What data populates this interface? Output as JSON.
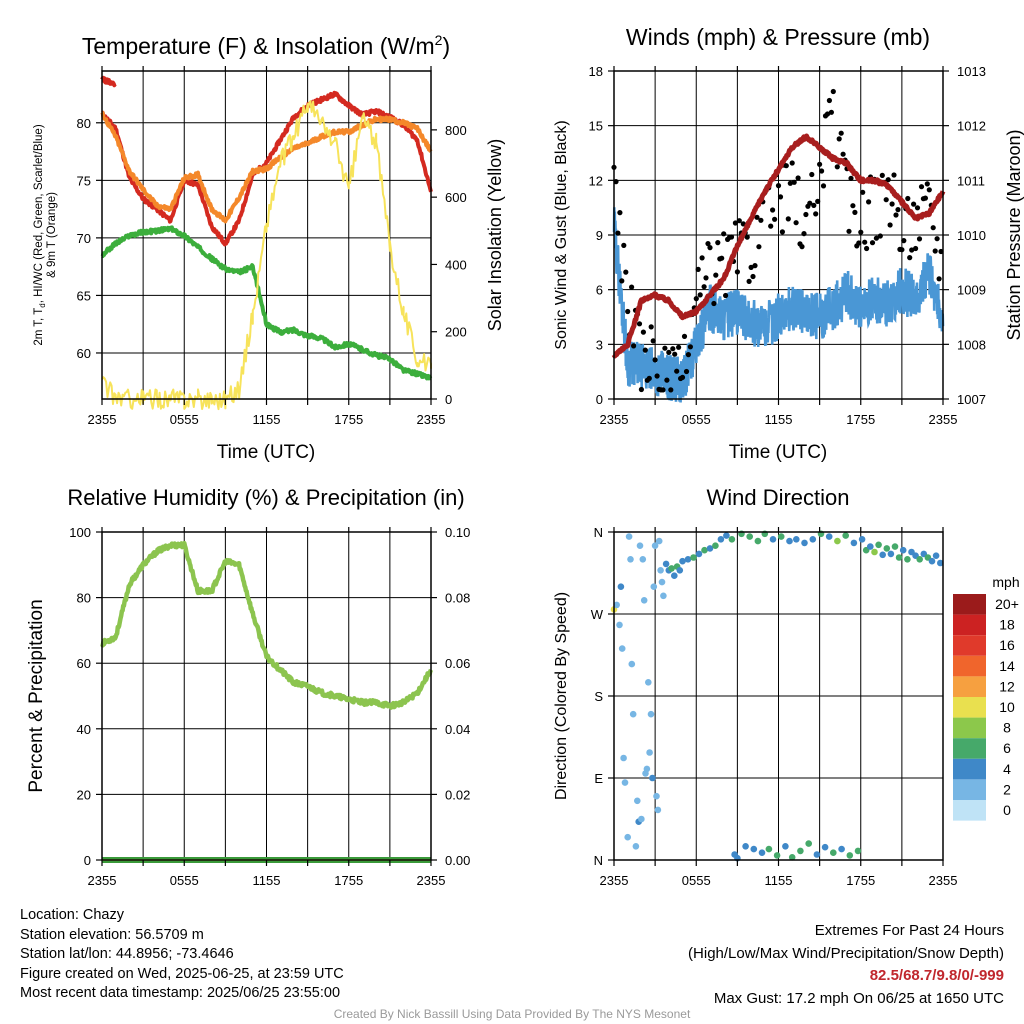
{
  "colors": {
    "red": "#d42a20",
    "orange": "#f4882a",
    "green": "#3cae3c",
    "yellow": "#f7e35b",
    "wind_blue": "#4a97d5",
    "gust_black": "#000000",
    "pressure_maroon": "#a81e1e",
    "rh_green": "#8cc44f",
    "precip_green": "#3a9a3a"
  },
  "titles": {
    "temperature": "Temperature (F) & Insolation (W/m",
    "temperature_sup": "2",
    "temperature_close": ")",
    "winds": "Winds (mph) & Pressure (mb)",
    "humidity": "Relative Humidity (%) & Precipitation (in)",
    "direction": "Wind Direction"
  },
  "axis_labels": {
    "time_utc": "Time (UTC)",
    "temp_left_line1": "2m T, T",
    "temp_left_sub": "d",
    "temp_left_line1_rest": ", HI/WC (Red, Green, Scarlet/Blue)",
    "temp_left_line2": "& 9m T (Orange)",
    "temp_right": "Solar Insolation (Yellow)",
    "wind_left": "Sonic Wind & Gust (Blue, Black)",
    "wind_right": "Station Pressure (Maroon)",
    "rh_left": "Percent & Precipitation",
    "dir_left": "Direction (Colored By Speed)"
  },
  "time_ticks": [
    "2355",
    "0555",
    "1155",
    "1755",
    "2355"
  ],
  "ticks": {
    "temp_left": [
      "60",
      "65",
      "70",
      "75",
      "80"
    ],
    "temp_right": [
      "0",
      "200",
      "400",
      "600",
      "800"
    ],
    "wind_left": [
      "0",
      "3",
      "6",
      "9",
      "12",
      "15",
      "18"
    ],
    "wind_right": [
      "1007",
      "1008",
      "1009",
      "1010",
      "1011",
      "1012",
      "1013"
    ],
    "rh_left": [
      "0",
      "20",
      "40",
      "60",
      "80",
      "100"
    ],
    "rh_right": [
      "0.00",
      "0.02",
      "0.04",
      "0.06",
      "0.08",
      "0.10"
    ],
    "dir_left": [
      "N",
      "E",
      "S",
      "W",
      "N"
    ]
  },
  "legend": {
    "title": "mph",
    "labels": [
      "20+",
      "18",
      "16",
      "14",
      "12",
      "10",
      "8",
      "6",
      "4",
      "2",
      "0"
    ],
    "colors": [
      "#9b1b1b",
      "#cc2222",
      "#e03a2b",
      "#f0652c",
      "#f6a040",
      "#e9e04f",
      "#8cc84b",
      "#46a96a",
      "#3f88c8",
      "#77b6e4",
      "#bfe3f6"
    ]
  },
  "info": {
    "location": "Location: Chazy",
    "elevation": "Station elevation: 56.5709 m",
    "latlon": "Station lat/lon: 44.8956; -73.4646",
    "created": "Figure created on Wed, 2025-06-25, at 23:59 UTC",
    "recent": "Most recent data timestamp: 2025/06/25 23:55:00"
  },
  "extremes": {
    "heading": "Extremes For Past 24 Hours",
    "subheading": "(High/Low/Max Wind/Precipitation/Snow Depth)",
    "values": "82.5/68.7/9.8/0/-999",
    "max_gust": "Max Gust: 17.2 mph On 06/25 at 1650 UTC"
  },
  "credit": "Created By Nick Bassill Using Data Provided By The NYS Mesonet",
  "chart_data": [
    {
      "type": "line",
      "title": "Temperature (F) & Insolation (W/m2)",
      "xlabel": "Time (UTC)",
      "ylabel": "2m T, Td, HI/WC (Red, Green, Scarlet/Blue) & 9m T (Orange)",
      "y2label": "Solar Insolation (Yellow)",
      "x_ticks": [
        "2355",
        "0555",
        "1155",
        "1755",
        "2355"
      ],
      "ylim": [
        56,
        84.5
      ],
      "y2lim": [
        0,
        975
      ],
      "grid": true,
      "x": [
        0,
        1,
        2,
        3,
        4,
        5,
        6,
        7,
        8,
        9,
        10,
        11,
        12,
        13,
        14,
        15,
        16,
        17,
        18,
        19,
        20,
        21,
        22,
        23,
        24
      ],
      "series": [
        {
          "name": "2m T (Red)",
          "axis": "left",
          "color_key": "red",
          "values": [
            80.8,
            79.5,
            75.2,
            73.4,
            72.5,
            71.5,
            75.0,
            74.6,
            71.0,
            69.5,
            71.5,
            75.5,
            76.5,
            78.5,
            80.5,
            81.5,
            82.0,
            82.5,
            81.5,
            80.7,
            81.0,
            80.5,
            79.8,
            78.5,
            74.0
          ]
        },
        {
          "name": "9m T (Orange)",
          "axis": "left",
          "color_key": "orange",
          "values": [
            80.8,
            78.8,
            75.8,
            74.2,
            72.8,
            72.5,
            75.2,
            75.5,
            72.5,
            71.5,
            73.5,
            75.8,
            76.0,
            77.0,
            77.8,
            78.2,
            78.8,
            79.2,
            79.2,
            79.8,
            80.3,
            80.3,
            80.0,
            79.5,
            77.5
          ]
        },
        {
          "name": "HI/WC (Scarlet)",
          "axis": "left",
          "color_key": "red",
          "values": [
            83.8,
            83.3,
            null,
            null,
            null,
            null,
            null,
            null,
            null,
            null,
            null,
            null,
            null,
            null,
            null,
            null,
            null,
            null,
            null,
            null,
            null,
            null,
            null,
            null,
            null
          ]
        },
        {
          "name": "Td (Green)",
          "axis": "left",
          "color_key": "green",
          "values": [
            68.5,
            69.5,
            70.2,
            70.5,
            70.6,
            70.8,
            70.2,
            69.2,
            68.2,
            67.3,
            67.0,
            67.5,
            62.5,
            61.8,
            62.0,
            61.5,
            61.3,
            60.5,
            60.8,
            60.3,
            59.8,
            59.5,
            58.5,
            58.2,
            57.8
          ]
        },
        {
          "name": "Solar Insolation (Yellow)",
          "axis": "right",
          "color_key": "yellow",
          "values": [
            45,
            5,
            0,
            0,
            0,
            0,
            0,
            0,
            0,
            0,
            30,
            250,
            520,
            700,
            780,
            880,
            820,
            760,
            620,
            840,
            760,
            460,
            260,
            120,
            90
          ]
        }
      ]
    },
    {
      "type": "line",
      "title": "Winds (mph) & Pressure (mb)",
      "xlabel": "Time (UTC)",
      "ylabel": "Sonic Wind & Gust (Blue, Black)",
      "y2label": "Station Pressure (Maroon)",
      "x_ticks": [
        "2355",
        "0555",
        "1155",
        "1755",
        "2355"
      ],
      "ylim": [
        0,
        18
      ],
      "y2lim": [
        1007,
        1013
      ],
      "grid": true,
      "x": [
        0,
        1,
        2,
        3,
        4,
        5,
        6,
        7,
        8,
        9,
        10,
        11,
        12,
        13,
        14,
        15,
        16,
        17,
        18,
        19,
        20,
        21,
        22,
        23,
        24
      ],
      "series": [
        {
          "name": "Sonic Wind (Blue)",
          "axis": "left",
          "color_key": "wind_blue",
          "values": [
            9.5,
            2.0,
            1.8,
            1.5,
            1.2,
            1.0,
            3.0,
            5.0,
            4.5,
            4.8,
            4.2,
            4.0,
            4.5,
            5.0,
            4.8,
            4.5,
            5.0,
            5.8,
            5.0,
            5.5,
            5.2,
            6.0,
            5.5,
            7.0,
            4.0
          ]
        },
        {
          "name": "Gust (Black)",
          "axis": "left",
          "color_key": "gust_black",
          "values": [
            14.5,
            6.5,
            4.0,
            3.5,
            2.5,
            2.5,
            7.0,
            8.5,
            9.0,
            9.5,
            10.0,
            11.0,
            12.5,
            13.0,
            11.0,
            13.5,
            17.2,
            12.5,
            11.5,
            12.0,
            13.0,
            10.5,
            11.5,
            12.0,
            9.0
          ]
        },
        {
          "name": "Station Pressure (Maroon)",
          "axis": "right",
          "color_key": "pressure_maroon",
          "values": [
            1007.8,
            1008.0,
            1008.8,
            1008.9,
            1008.8,
            1008.5,
            1008.6,
            1008.9,
            1009.2,
            1009.8,
            1010.3,
            1010.8,
            1011.2,
            1011.6,
            1011.8,
            1011.6,
            1011.4,
            1011.3,
            1011.0,
            1011.0,
            1010.9,
            1010.6,
            1010.3,
            1010.4,
            1010.8
          ]
        }
      ]
    },
    {
      "type": "line",
      "title": "Relative Humidity (%) & Precipitation (in)",
      "xlabel": "",
      "ylabel": "Percent & Precipitation",
      "x_ticks": [
        "2355",
        "0555",
        "1155",
        "1755",
        "2355"
      ],
      "ylim": [
        0,
        100
      ],
      "y2lim": [
        0,
        0.1
      ],
      "grid": true,
      "x": [
        0,
        1,
        2,
        3,
        4,
        5,
        6,
        7,
        8,
        9,
        10,
        11,
        12,
        13,
        14,
        15,
        16,
        17,
        18,
        19,
        20,
        21,
        22,
        23,
        24
      ],
      "series": [
        {
          "name": "Relative Humidity",
          "axis": "left",
          "color_key": "rh_green",
          "values": [
            66,
            68,
            84,
            90,
            94,
            96,
            96,
            82,
            82,
            91,
            90,
            75,
            62,
            58,
            54,
            53,
            51,
            50,
            49,
            48,
            48,
            47,
            48,
            51,
            58
          ]
        },
        {
          "name": "Precipitation",
          "axis": "right",
          "color_key": "precip_green",
          "values": [
            0,
            0,
            0,
            0,
            0,
            0,
            0,
            0,
            0,
            0,
            0,
            0,
            0,
            0,
            0,
            0,
            0,
            0,
            0,
            0,
            0,
            0,
            0,
            0,
            0
          ]
        }
      ]
    },
    {
      "type": "scatter",
      "title": "Wind Direction",
      "xlabel": "",
      "ylabel": "Direction (Colored By Speed)",
      "x_ticks": [
        "2355",
        "0555",
        "1155",
        "1755",
        "2355"
      ],
      "y_ticks": [
        "N",
        "E",
        "S",
        "W",
        "N"
      ],
      "ylim": [
        0,
        360
      ],
      "grid": true,
      "colorbar": {
        "title": "mph",
        "labels": [
          "20+",
          "18",
          "16",
          "14",
          "12",
          "10",
          "8",
          "6",
          "4",
          "2",
          "0"
        ]
      },
      "points": [
        {
          "x": 0.0,
          "y": 275,
          "speed": 9
        },
        {
          "x": 0.2,
          "y": 280,
          "speed": 2
        },
        {
          "x": 0.4,
          "y": 258,
          "speed": 1
        },
        {
          "x": 0.5,
          "y": 300,
          "speed": 3
        },
        {
          "x": 0.6,
          "y": 232,
          "speed": 1
        },
        {
          "x": 0.7,
          "y": 112,
          "speed": 2
        },
        {
          "x": 0.8,
          "y": 85,
          "speed": 1
        },
        {
          "x": 1.0,
          "y": 25,
          "speed": 1
        },
        {
          "x": 1.1,
          "y": 355,
          "speed": 1
        },
        {
          "x": 1.2,
          "y": 330,
          "speed": 1
        },
        {
          "x": 1.3,
          "y": 215,
          "speed": 2
        },
        {
          "x": 1.4,
          "y": 160,
          "speed": 1
        },
        {
          "x": 1.6,
          "y": 15,
          "speed": 1
        },
        {
          "x": 1.7,
          "y": 65,
          "speed": 2
        },
        {
          "x": 1.8,
          "y": 42,
          "speed": 3
        },
        {
          "x": 1.9,
          "y": 345,
          "speed": 1
        },
        {
          "x": 2.0,
          "y": 45,
          "speed": 1
        },
        {
          "x": 2.1,
          "y": 330,
          "speed": 1
        },
        {
          "x": 2.2,
          "y": 285,
          "speed": 1
        },
        {
          "x": 2.3,
          "y": 95,
          "speed": 1
        },
        {
          "x": 2.4,
          "y": 100,
          "speed": 2
        },
        {
          "x": 2.5,
          "y": 195,
          "speed": 2
        },
        {
          "x": 2.6,
          "y": 118,
          "speed": 1
        },
        {
          "x": 2.7,
          "y": 160,
          "speed": 2
        },
        {
          "x": 2.8,
          "y": 90,
          "speed": 3
        },
        {
          "x": 2.9,
          "y": 300,
          "speed": 1
        },
        {
          "x": 3.0,
          "y": 345,
          "speed": 2
        },
        {
          "x": 3.1,
          "y": 70,
          "speed": 2
        },
        {
          "x": 3.2,
          "y": 55,
          "speed": 1
        },
        {
          "x": 3.3,
          "y": 350,
          "speed": 1
        },
        {
          "x": 3.4,
          "y": 318,
          "speed": 2
        },
        {
          "x": 3.5,
          "y": 305,
          "speed": 2
        },
        {
          "x": 3.6,
          "y": 290,
          "speed": 2
        },
        {
          "x": 3.8,
          "y": 325,
          "speed": 3
        },
        {
          "x": 4.0,
          "y": 318,
          "speed": 4
        },
        {
          "x": 4.2,
          "y": 320,
          "speed": 6
        },
        {
          "x": 4.4,
          "y": 312,
          "speed": 4
        },
        {
          "x": 4.6,
          "y": 322,
          "speed": 5
        },
        {
          "x": 4.8,
          "y": 318,
          "speed": 3
        },
        {
          "x": 5.0,
          "y": 328,
          "speed": 4
        },
        {
          "x": 5.4,
          "y": 330,
          "speed": 4
        },
        {
          "x": 5.8,
          "y": 332,
          "speed": 5
        },
        {
          "x": 6.2,
          "y": 336,
          "speed": 4
        },
        {
          "x": 6.6,
          "y": 340,
          "speed": 5
        },
        {
          "x": 7.0,
          "y": 342,
          "speed": 4
        },
        {
          "x": 7.4,
          "y": 345,
          "speed": 5
        },
        {
          "x": 7.8,
          "y": 352,
          "speed": 4
        },
        {
          "x": 8.2,
          "y": 356,
          "speed": 4
        },
        {
          "x": 8.6,
          "y": 352,
          "speed": 5
        },
        {
          "x": 8.8,
          "y": 6,
          "speed": 4
        },
        {
          "x": 9.0,
          "y": 2,
          "speed": 3
        },
        {
          "x": 9.3,
          "y": 358,
          "speed": 5
        },
        {
          "x": 9.6,
          "y": 15,
          "speed": 4
        },
        {
          "x": 9.9,
          "y": 355,
          "speed": 6
        },
        {
          "x": 10.2,
          "y": 12,
          "speed": 4
        },
        {
          "x": 10.5,
          "y": 350,
          "speed": 5
        },
        {
          "x": 10.8,
          "y": 8,
          "speed": 4
        },
        {
          "x": 11.0,
          "y": 358,
          "speed": 6
        },
        {
          "x": 11.3,
          "y": 12,
          "speed": 5
        },
        {
          "x": 11.6,
          "y": 352,
          "speed": 4
        },
        {
          "x": 11.9,
          "y": 5,
          "speed": 6
        },
        {
          "x": 12.2,
          "y": 355,
          "speed": 5
        },
        {
          "x": 12.5,
          "y": 15,
          "speed": 4
        },
        {
          "x": 12.8,
          "y": 350,
          "speed": 4
        },
        {
          "x": 13.0,
          "y": 3,
          "speed": 6
        },
        {
          "x": 13.3,
          "y": 352,
          "speed": 4
        },
        {
          "x": 13.6,
          "y": 10,
          "speed": 5
        },
        {
          "x": 13.9,
          "y": 348,
          "speed": 4
        },
        {
          "x": 14.2,
          "y": 18,
          "speed": 5
        },
        {
          "x": 14.5,
          "y": 352,
          "speed": 4
        },
        {
          "x": 14.8,
          "y": 6,
          "speed": 4
        },
        {
          "x": 15.1,
          "y": 358,
          "speed": 6
        },
        {
          "x": 15.4,
          "y": 14,
          "speed": 4
        },
        {
          "x": 15.7,
          "y": 355,
          "speed": 4
        },
        {
          "x": 16.0,
          "y": 8,
          "speed": 5
        },
        {
          "x": 16.3,
          "y": 350,
          "speed": 7
        },
        {
          "x": 16.6,
          "y": 12,
          "speed": 4
        },
        {
          "x": 16.9,
          "y": 356,
          "speed": 5
        },
        {
          "x": 17.2,
          "y": 5,
          "speed": 6
        },
        {
          "x": 17.5,
          "y": 348,
          "speed": 4
        },
        {
          "x": 17.8,
          "y": 10,
          "speed": 5
        },
        {
          "x": 18.1,
          "y": 352,
          "speed": 4
        },
        {
          "x": 18.4,
          "y": 340,
          "speed": 6
        },
        {
          "x": 18.7,
          "y": 344,
          "speed": 4
        },
        {
          "x": 19.0,
          "y": 338,
          "speed": 7
        },
        {
          "x": 19.3,
          "y": 346,
          "speed": 5
        },
        {
          "x": 19.6,
          "y": 335,
          "speed": 4
        },
        {
          "x": 19.9,
          "y": 342,
          "speed": 6
        },
        {
          "x": 20.2,
          "y": 336,
          "speed": 4
        },
        {
          "x": 20.5,
          "y": 344,
          "speed": 5
        },
        {
          "x": 20.8,
          "y": 332,
          "speed": 6
        },
        {
          "x": 21.1,
          "y": 340,
          "speed": 4
        },
        {
          "x": 21.4,
          "y": 330,
          "speed": 5
        },
        {
          "x": 21.7,
          "y": 338,
          "speed": 4
        },
        {
          "x": 22.0,
          "y": 334,
          "speed": 4
        },
        {
          "x": 22.3,
          "y": 330,
          "speed": 5
        },
        {
          "x": 22.6,
          "y": 336,
          "speed": 4
        },
        {
          "x": 22.9,
          "y": 332,
          "speed": 5
        },
        {
          "x": 23.2,
          "y": 328,
          "speed": 4
        },
        {
          "x": 23.5,
          "y": 334,
          "speed": 4
        },
        {
          "x": 23.8,
          "y": 326,
          "speed": 4
        }
      ]
    }
  ]
}
